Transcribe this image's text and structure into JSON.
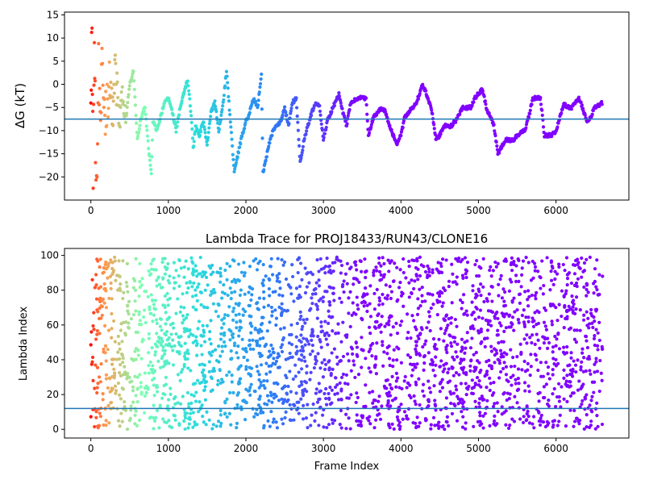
{
  "colors": {
    "hline": "#1f77b4",
    "axes": "#000000",
    "background": "#ffffff",
    "colormap": "rainbow",
    "cmap_stops": [
      "#ff0000",
      "#ff9a4f",
      "#80ffb4",
      "#2adcdc",
      "#2c7ef7",
      "#8000ff"
    ]
  },
  "chart_data": [
    {
      "type": "scatter",
      "title": "",
      "xlabel": "",
      "ylabel": "ΔG (kT)",
      "xlim": [
        -340,
        6940
      ],
      "ylim": [
        -25,
        15.6
      ],
      "xticks": [
        0,
        1000,
        2000,
        3000,
        4000,
        5000,
        6000
      ],
      "xtick_labels": [
        "0",
        "1000",
        "2000",
        "3000",
        "4000",
        "5000",
        "6000"
      ],
      "yticks": [
        -20,
        -15,
        -10,
        -5,
        0,
        5,
        10,
        15
      ],
      "ytick_labels": [
        "−20",
        "−15",
        "−10",
        "−5",
        "0",
        "5",
        "10",
        "15"
      ],
      "hline_y": -7.5,
      "grid": false,
      "color_by": "frame index (rainbow colormap, red → purple)",
      "series_shape": [
        [
          0,
          0
        ],
        [
          15,
          10
        ],
        [
          30,
          -20
        ],
        [
          45,
          13
        ],
        [
          60,
          -12
        ],
        [
          80,
          -23
        ],
        [
          100,
          5
        ],
        [
          120,
          -10
        ],
        [
          150,
          6
        ],
        [
          180,
          -8
        ],
        [
          210,
          -4
        ],
        [
          240,
          0
        ],
        [
          280,
          -6
        ],
        [
          320,
          4
        ],
        [
          360,
          -10
        ],
        [
          400,
          -3
        ],
        [
          450,
          -8
        ],
        [
          500,
          0
        ],
        [
          550,
          3
        ],
        [
          600,
          -12
        ],
        [
          650,
          -7
        ],
        [
          700,
          -5
        ],
        [
          750,
          -15
        ],
        [
          780,
          -19
        ],
        [
          800,
          -8
        ],
        [
          850,
          -10
        ],
        [
          900,
          -7
        ],
        [
          950,
          -4
        ],
        [
          1000,
          -3
        ],
        [
          1050,
          -6
        ],
        [
          1100,
          -10
        ],
        [
          1150,
          -5
        ],
        [
          1200,
          -2
        ],
        [
          1250,
          1
        ],
        [
          1300,
          -8
        ],
        [
          1320,
          -14
        ],
        [
          1350,
          -9
        ],
        [
          1400,
          -11
        ],
        [
          1450,
          -8
        ],
        [
          1500,
          -13
        ],
        [
          1550,
          -6
        ],
        [
          1600,
          -4
        ],
        [
          1650,
          -10
        ],
        [
          1700,
          -5
        ],
        [
          1750,
          3
        ],
        [
          1800,
          -8
        ],
        [
          1850,
          -19
        ],
        [
          1900,
          -15
        ],
        [
          1950,
          -11
        ],
        [
          2000,
          -8
        ],
        [
          2050,
          -6
        ],
        [
          2100,
          -3
        ],
        [
          2150,
          -5
        ],
        [
          2200,
          2
        ],
        [
          2220,
          -19
        ],
        [
          2300,
          -13
        ],
        [
          2350,
          -10
        ],
        [
          2400,
          -9
        ],
        [
          2450,
          -8
        ],
        [
          2500,
          -5
        ],
        [
          2550,
          -9
        ],
        [
          2600,
          -4
        ],
        [
          2650,
          -3
        ],
        [
          2700,
          -17
        ],
        [
          2750,
          -12
        ],
        [
          2800,
          -9
        ],
        [
          2850,
          -6
        ],
        [
          2900,
          -4
        ],
        [
          2950,
          -5
        ],
        [
          3000,
          -12
        ],
        [
          3050,
          -8
        ],
        [
          3100,
          -6
        ],
        [
          3150,
          -4
        ],
        [
          3200,
          -2
        ],
        [
          3250,
          -6
        ],
        [
          3300,
          -9
        ],
        [
          3350,
          -4
        ],
        [
          3450,
          -3
        ],
        [
          3550,
          -3
        ],
        [
          3580,
          -11
        ],
        [
          3650,
          -7
        ],
        [
          3750,
          -5
        ],
        [
          3800,
          -6
        ],
        [
          3850,
          -9
        ],
        [
          3950,
          -13
        ],
        [
          4000,
          -11
        ],
        [
          4050,
          -7
        ],
        [
          4100,
          -6
        ],
        [
          4200,
          -4
        ],
        [
          4280,
          0
        ],
        [
          4350,
          -3
        ],
        [
          4400,
          -6
        ],
        [
          4450,
          -12
        ],
        [
          4500,
          -11
        ],
        [
          4550,
          -9
        ],
        [
          4650,
          -9
        ],
        [
          4700,
          -8
        ],
        [
          4800,
          -5
        ],
        [
          4900,
          -5
        ],
        [
          4950,
          -3
        ],
        [
          5000,
          -2
        ],
        [
          5050,
          -1
        ],
        [
          5100,
          -5
        ],
        [
          5150,
          -7
        ],
        [
          5200,
          -9
        ],
        [
          5250,
          -15
        ],
        [
          5350,
          -12
        ],
        [
          5450,
          -12
        ],
        [
          5500,
          -11
        ],
        [
          5600,
          -10
        ],
        [
          5650,
          -7
        ],
        [
          5700,
          -3
        ],
        [
          5800,
          -3
        ],
        [
          5850,
          -11
        ],
        [
          5950,
          -11
        ],
        [
          6000,
          -10
        ],
        [
          6050,
          -7
        ],
        [
          6100,
          -4
        ],
        [
          6150,
          -5
        ],
        [
          6200,
          -5
        ],
        [
          6300,
          -3
        ],
        [
          6400,
          -8
        ],
        [
          6450,
          -7
        ],
        [
          6500,
          -5
        ],
        [
          6600,
          -4
        ]
      ]
    },
    {
      "type": "scatter",
      "title": "Lambda Trace for PROJ18433/RUN43/CLONE16",
      "xlabel": "Frame Index",
      "ylabel": "Lambda Index",
      "xlim": [
        -340,
        6940
      ],
      "ylim": [
        -5,
        104
      ],
      "xticks": [
        0,
        1000,
        2000,
        3000,
        4000,
        5000,
        6000
      ],
      "xtick_labels": [
        "0",
        "1000",
        "2000",
        "3000",
        "4000",
        "5000",
        "6000"
      ],
      "yticks": [
        0,
        20,
        40,
        60,
        80,
        100
      ],
      "ytick_labels": [
        "0",
        "20",
        "40",
        "60",
        "80",
        "100"
      ],
      "hline_y": 12,
      "grid": false,
      "color_by": "frame index (rainbow colormap, red → purple)",
      "x_range": [
        0,
        6600
      ],
      "y_range": [
        0,
        99
      ]
    }
  ]
}
